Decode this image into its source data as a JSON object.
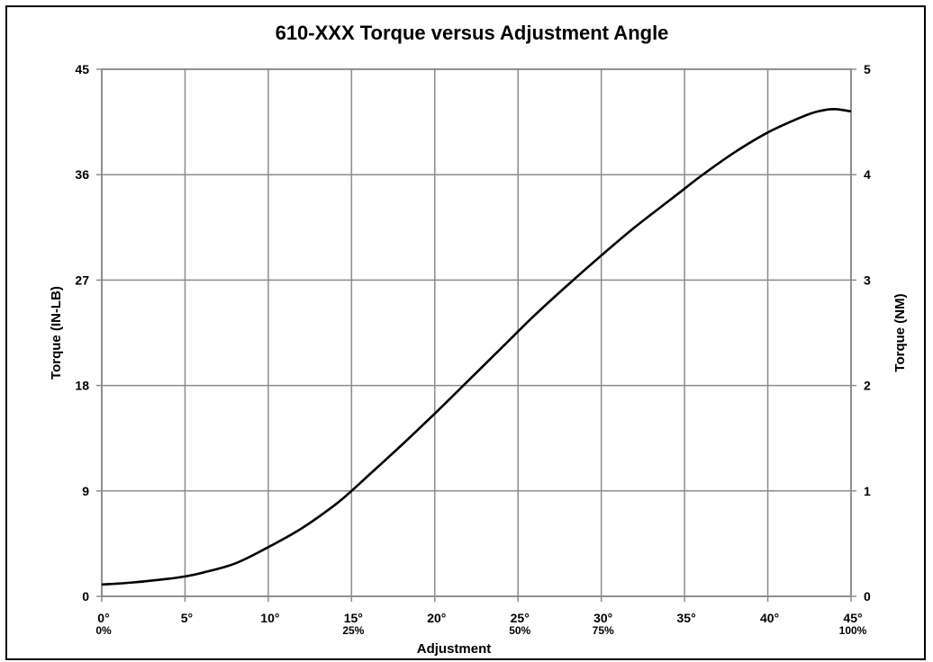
{
  "chart_data": {
    "type": "line",
    "title": "610-XXX Torque versus Adjustment Angle",
    "xlabel": "Adjustment",
    "ylabel": "Torque (IN-LB)",
    "y2label": "Torque (NM)",
    "xlim": [
      0,
      45
    ],
    "ylim": [
      0,
      45
    ],
    "y2lim": [
      0,
      5
    ],
    "grid": true,
    "x_ticks": [
      "0°",
      "5°",
      "10°",
      "15°",
      "20°",
      "25°",
      "30°",
      "35°",
      "40°",
      "45°"
    ],
    "x_tick_values": [
      0,
      5,
      10,
      15,
      20,
      25,
      30,
      35,
      40,
      45
    ],
    "x_subticks": [
      {
        "x": 0,
        "label": "0%"
      },
      {
        "x": 15,
        "label": "25%"
      },
      {
        "x": 25,
        "label": "50%"
      },
      {
        "x": 30,
        "label": "75%"
      },
      {
        "x": 45,
        "label": "100%"
      }
    ],
    "y_ticks": [
      "0",
      "9",
      "18",
      "27",
      "36",
      "45"
    ],
    "y_tick_values": [
      0,
      9,
      18,
      27,
      36,
      45
    ],
    "y2_ticks": [
      "0",
      "1",
      "2",
      "3",
      "4",
      "5"
    ],
    "y2_tick_values": [
      0,
      1,
      2,
      3,
      4,
      5
    ],
    "series": [
      {
        "x": [
          0,
          2,
          4,
          5,
          6,
          8,
          10,
          12,
          14,
          15,
          16,
          18,
          20,
          22,
          24,
          26,
          28,
          30,
          32,
          34,
          35,
          36,
          38,
          40,
          42,
          43,
          44,
          45
        ],
        "y": [
          1.0,
          1.2,
          1.5,
          1.7,
          2.0,
          2.8,
          4.2,
          5.8,
          7.8,
          9.0,
          10.3,
          12.9,
          15.6,
          18.4,
          21.2,
          24.0,
          26.6,
          29.1,
          31.5,
          33.7,
          34.8,
          35.9,
          37.9,
          39.6,
          40.9,
          41.4,
          41.6,
          41.4
        ],
        "color": "#000000"
      }
    ]
  }
}
